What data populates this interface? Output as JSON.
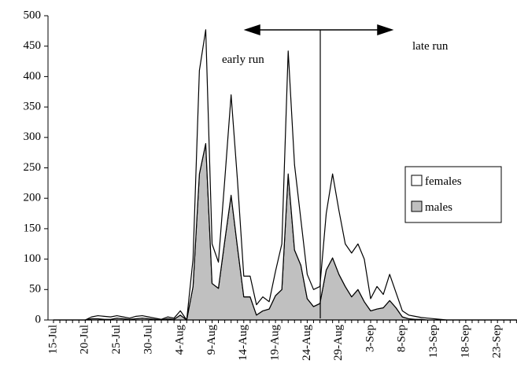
{
  "chart_data": {
    "type": "stacked-area",
    "categories": [
      "15-Jul",
      null,
      null,
      null,
      null,
      "20-Jul",
      null,
      null,
      null,
      null,
      "25-Jul",
      null,
      null,
      null,
      null,
      "30-Jul",
      null,
      null,
      null,
      null,
      "4-Aug",
      null,
      null,
      null,
      null,
      "9-Aug",
      null,
      null,
      null,
      null,
      "14-Aug",
      null,
      null,
      null,
      null,
      "19-Aug",
      null,
      null,
      null,
      null,
      "24-Aug",
      null,
      null,
      null,
      null,
      "29-Aug",
      null,
      null,
      null,
      null,
      "3-Sep",
      null,
      null,
      null,
      null,
      "8-Sep",
      null,
      null,
      null,
      null,
      "13-Sep",
      null,
      null,
      null,
      null,
      "18-Sep",
      null,
      null,
      null,
      null,
      "23-Sep",
      null,
      null,
      null
    ],
    "series": [
      {
        "name": "males",
        "color": "#c0c0c0",
        "values": [
          0,
          0,
          0,
          0,
          0,
          0,
          2,
          2,
          1,
          1,
          3,
          2,
          1,
          2,
          3,
          2,
          1,
          0,
          2,
          1,
          8,
          0,
          55,
          240,
          290,
          60,
          52,
          130,
          205,
          120,
          38,
          38,
          8,
          15,
          18,
          40,
          50,
          240,
          115,
          90,
          35,
          22,
          27,
          82,
          102,
          75,
          55,
          38,
          50,
          30,
          15,
          18,
          20,
          32,
          20,
          5,
          2,
          1,
          1,
          0,
          0,
          0,
          0,
          0,
          0,
          0,
          0,
          0,
          0,
          0,
          0,
          0,
          0,
          0
        ]
      },
      {
        "name": "females",
        "color": "#ffffff",
        "values": [
          0,
          0,
          0,
          0,
          0,
          0,
          3,
          5,
          5,
          4,
          4,
          3,
          2,
          4,
          4,
          3,
          2,
          1,
          3,
          2,
          7,
          0,
          45,
          170,
          187,
          65,
          43,
          100,
          165,
          110,
          34,
          34,
          17,
          23,
          12,
          40,
          75,
          202,
          140,
          75,
          40,
          28,
          28,
          93,
          138,
          105,
          70,
          72,
          75,
          70,
          20,
          37,
          22,
          43,
          25,
          10,
          6,
          5,
          3,
          3,
          2,
          1,
          0,
          0,
          0,
          0,
          0,
          0,
          0,
          0,
          0,
          0,
          0,
          0
        ]
      }
    ],
    "ylim": [
      0,
      500
    ],
    "yticks": [
      0,
      50,
      100,
      150,
      200,
      250,
      300,
      350,
      400,
      450,
      500
    ],
    "annotations": [
      "early run",
      "late run"
    ],
    "legend": "right"
  }
}
